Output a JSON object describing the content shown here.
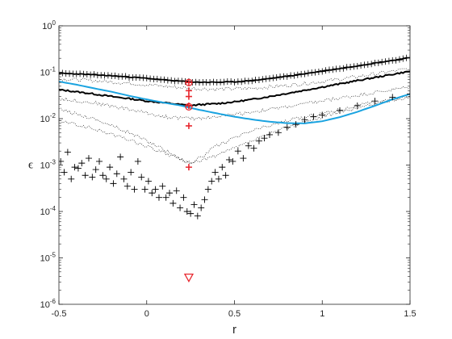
{
  "chart_data": {
    "type": "line",
    "title": "",
    "xlabel": "r",
    "ylabel": "ϵ",
    "xlim": [
      -0.5,
      1.5
    ],
    "ylim": [
      1e-06,
      1
    ],
    "yscale": "log",
    "grid": false,
    "legend": "none",
    "x_ticks": [
      {
        "value": -0.5,
        "label": "-0.5"
      },
      {
        "value": 0,
        "label": "0"
      },
      {
        "value": 0.5,
        "label": "0.5"
      },
      {
        "value": 1,
        "label": "1"
      },
      {
        "value": 1.5,
        "label": "1.5"
      }
    ],
    "y_ticks": [
      {
        "value": 1e-06,
        "base": "10",
        "exp": "-6"
      },
      {
        "value": 1e-05,
        "base": "10",
        "exp": "-5"
      },
      {
        "value": 0.0001,
        "base": "10",
        "exp": "-4"
      },
      {
        "value": 0.001,
        "base": "10",
        "exp": "-3"
      },
      {
        "value": 0.01,
        "base": "10",
        "exp": "-2"
      },
      {
        "value": 0.1,
        "base": "10",
        "exp": "-1"
      },
      {
        "value": 1,
        "base": "10",
        "exp": "0"
      }
    ],
    "series": [
      {
        "style": "black-plus-line",
        "color": "#000000",
        "x": [
          -0.5,
          -0.4,
          -0.3,
          -0.2,
          -0.1,
          0,
          0.1,
          0.2,
          0.25,
          0.3,
          0.4,
          0.5,
          0.6,
          0.7,
          0.8,
          0.9,
          1.0,
          1.1,
          1.2,
          1.3,
          1.4,
          1.5
        ],
        "y": [
          0.095,
          0.092,
          0.088,
          0.084,
          0.079,
          0.074,
          0.068,
          0.064,
          0.062,
          0.061,
          0.061,
          0.062,
          0.066,
          0.073,
          0.082,
          0.093,
          0.106,
          0.12,
          0.138,
          0.158,
          0.18,
          0.205
        ]
      },
      {
        "style": "black-dotted",
        "color": "#333333",
        "x": [
          -0.5,
          -0.3,
          -0.1,
          0.1,
          0.25,
          0.4,
          0.6,
          0.8,
          1.0,
          1.2,
          1.4,
          1.5
        ],
        "y": [
          0.072,
          0.066,
          0.058,
          0.05,
          0.045,
          0.043,
          0.045,
          0.052,
          0.063,
          0.08,
          0.105,
          0.12
        ]
      },
      {
        "style": "black-solid",
        "color": "#000000",
        "x": [
          -0.5,
          -0.4,
          -0.3,
          -0.2,
          -0.1,
          0,
          0.1,
          0.2,
          0.25,
          0.3,
          0.4,
          0.5,
          0.6,
          0.7,
          0.8,
          0.9,
          1.0,
          1.1,
          1.2,
          1.3,
          1.4,
          1.5
        ],
        "y": [
          0.042,
          0.038,
          0.034,
          0.03,
          0.027,
          0.024,
          0.022,
          0.02,
          0.019,
          0.02,
          0.021,
          0.023,
          0.026,
          0.03,
          0.035,
          0.041,
          0.048,
          0.056,
          0.066,
          0.077,
          0.09,
          0.105
        ]
      },
      {
        "style": "black-dotted",
        "color": "#333333",
        "x": [
          -0.5,
          -0.3,
          -0.1,
          0.1,
          0.25,
          0.4,
          0.6,
          0.8,
          1.0,
          1.2,
          1.4,
          1.5
        ],
        "y": [
          0.027,
          0.022,
          0.016,
          0.011,
          0.01,
          0.011,
          0.014,
          0.018,
          0.024,
          0.032,
          0.042,
          0.048
        ]
      },
      {
        "style": "black-dotted",
        "color": "#333333",
        "x": [
          -0.5,
          -0.3,
          -0.1,
          0.1,
          0.2,
          0.25,
          0.3,
          0.4,
          0.6,
          0.8,
          1.0,
          1.2,
          1.4,
          1.5
        ],
        "y": [
          0.016,
          0.01,
          0.005,
          0.0022,
          0.0013,
          0.0011,
          0.0014,
          0.0026,
          0.0055,
          0.009,
          0.013,
          0.019,
          0.026,
          0.031
        ]
      },
      {
        "style": "black-dotted",
        "color": "#333333",
        "x": [
          -0.5,
          -0.3,
          -0.1,
          0.1,
          0.25,
          0.4,
          0.6,
          0.8,
          1.0,
          1.2,
          1.4,
          1.5
        ],
        "y": [
          0.009,
          0.006,
          0.0035,
          0.0018,
          0.0011,
          0.0016,
          0.0033,
          0.0065,
          0.011,
          0.017,
          0.025,
          0.03
        ]
      },
      {
        "style": "blue-line",
        "color": "#1aa3e0",
        "x": [
          -0.5,
          -0.4,
          -0.3,
          -0.2,
          -0.1,
          0,
          0.1,
          0.2,
          0.25,
          0.3,
          0.4,
          0.5,
          0.6,
          0.7,
          0.8,
          0.9,
          1.0,
          1.1,
          1.2,
          1.3,
          1.4,
          1.5
        ],
        "y": [
          0.063,
          0.054,
          0.045,
          0.038,
          0.031,
          0.026,
          0.022,
          0.019,
          0.017,
          0.0155,
          0.013,
          0.011,
          0.0096,
          0.0086,
          0.008,
          0.0079,
          0.0088,
          0.0108,
          0.014,
          0.019,
          0.026,
          0.034
        ]
      },
      {
        "style": "black-plus-scatter",
        "color": "#000000",
        "x": [
          -0.49,
          -0.47,
          -0.45,
          -0.43,
          -0.41,
          -0.39,
          -0.37,
          -0.35,
          -0.33,
          -0.31,
          -0.29,
          -0.27,
          -0.25,
          -0.23,
          -0.21,
          -0.19,
          -0.17,
          -0.15,
          -0.13,
          -0.11,
          -0.09,
          -0.07,
          -0.05,
          -0.03,
          -0.01,
          0.01,
          0.03,
          0.05,
          0.07,
          0.09,
          0.11,
          0.13,
          0.15,
          0.17,
          0.19,
          0.21,
          0.23,
          0.25,
          0.27,
          0.29,
          0.31,
          0.33,
          0.35,
          0.37,
          0.39,
          0.41,
          0.43,
          0.45,
          0.47,
          0.49,
          0.52,
          0.55,
          0.58,
          0.61,
          0.64,
          0.67,
          0.7,
          0.75,
          0.8,
          0.85,
          0.9,
          0.95,
          1.0,
          1.1,
          1.2,
          1.3,
          1.4,
          1.5
        ],
        "y": [
          0.0012,
          0.0007,
          0.0019,
          0.0005,
          0.0009,
          0.00085,
          0.0011,
          0.0006,
          0.0014,
          0.00055,
          0.0008,
          0.0012,
          0.0006,
          0.0005,
          0.0009,
          0.0004,
          0.00065,
          0.0015,
          0.0005,
          0.00035,
          0.0007,
          0.0003,
          0.0012,
          0.00055,
          0.0003,
          0.00045,
          0.00025,
          0.0003,
          0.0002,
          0.00035,
          0.0002,
          0.00025,
          0.00015,
          0.00028,
          0.00012,
          0.0002,
          0.0001,
          9e-05,
          0.00014,
          8e-05,
          0.00012,
          0.00018,
          0.0003,
          0.00045,
          0.0007,
          0.0005,
          0.0009,
          0.0006,
          0.0013,
          0.0012,
          0.002,
          0.0014,
          0.0026,
          0.0023,
          0.0033,
          0.0038,
          0.0045,
          0.005,
          0.0065,
          0.0075,
          0.0095,
          0.011,
          0.012,
          0.015,
          0.019,
          0.024,
          0.029,
          0.034
        ]
      }
    ],
    "red_markers": [
      {
        "marker": "plus",
        "x": 0.24,
        "y": 0.06
      },
      {
        "marker": "plus",
        "x": 0.24,
        "y": 0.04
      },
      {
        "marker": "plus",
        "x": 0.24,
        "y": 0.03
      },
      {
        "marker": "plus",
        "x": 0.24,
        "y": 0.019
      },
      {
        "marker": "plus",
        "x": 0.24,
        "y": 0.007
      },
      {
        "marker": "plus",
        "x": 0.24,
        "y": 0.0009
      },
      {
        "marker": "circle",
        "x": 0.24,
        "y": 0.06
      },
      {
        "marker": "circle",
        "x": 0.24,
        "y": 0.018
      },
      {
        "marker": "triangle-down",
        "x": 0.24,
        "y": 3.8e-06
      }
    ],
    "colors": {
      "axes": "#262626",
      "red": "#e8272e",
      "blue": "#1aa3e0"
    }
  }
}
